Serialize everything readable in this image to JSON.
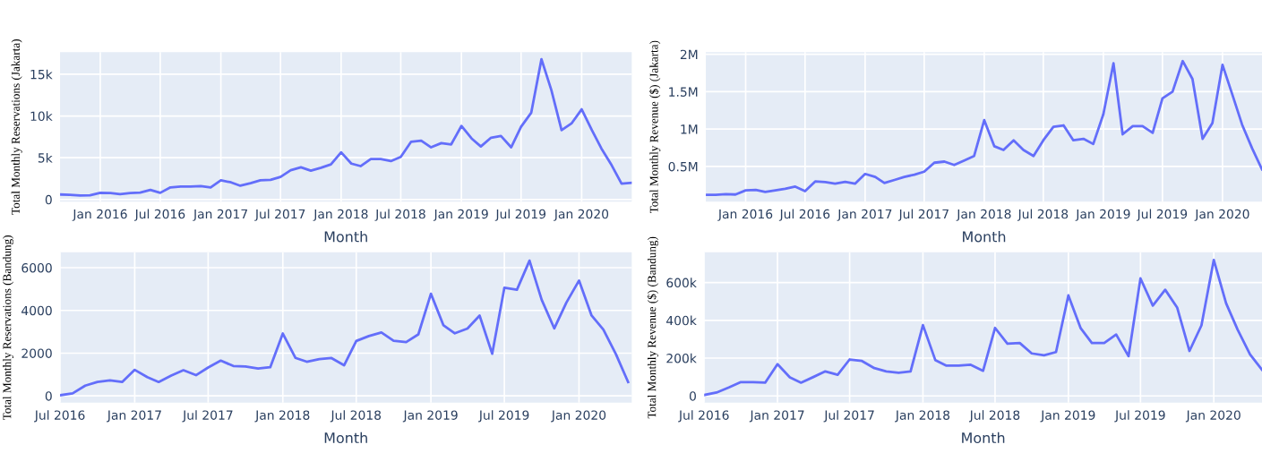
{
  "chart_data": [
    {
      "type": "line",
      "xlabel": "Month",
      "ylabel": "Total Monthly Reservations (Jakarta)",
      "grid": true,
      "x": [
        "2015-09",
        "2015-10",
        "2015-11",
        "2015-12",
        "2016-01",
        "2016-02",
        "2016-03",
        "2016-04",
        "2016-05",
        "2016-06",
        "2016-07",
        "2016-08",
        "2016-09",
        "2016-10",
        "2016-11",
        "2016-12",
        "2017-01",
        "2017-02",
        "2017-03",
        "2017-04",
        "2017-05",
        "2017-06",
        "2017-07",
        "2017-08",
        "2017-09",
        "2017-10",
        "2017-11",
        "2017-12",
        "2018-01",
        "2018-02",
        "2018-03",
        "2018-04",
        "2018-05",
        "2018-06",
        "2018-07",
        "2018-08",
        "2018-09",
        "2018-10",
        "2018-11",
        "2018-12",
        "2019-01",
        "2019-02",
        "2019-03",
        "2019-04",
        "2019-05",
        "2019-06",
        "2019-07",
        "2019-08",
        "2019-09",
        "2019-10",
        "2019-11",
        "2019-12",
        "2020-01",
        "2020-02",
        "2020-03",
        "2020-04",
        "2020-05",
        "2020-06"
      ],
      "series": [
        {
          "color": "#636efa",
          "values": [
            600,
            550,
            480,
            500,
            800,
            780,
            650,
            780,
            820,
            1150,
            800,
            1450,
            1550,
            1550,
            1600,
            1450,
            2300,
            2050,
            1650,
            1950,
            2300,
            2350,
            2700,
            3500,
            3850,
            3450,
            3800,
            4200,
            5650,
            4300,
            4000,
            4850,
            4850,
            4600,
            5100,
            6900,
            7050,
            6250,
            6750,
            6600,
            8800,
            7300,
            6350,
            7400,
            7600,
            6250,
            8700,
            10400,
            16800,
            13100,
            8300,
            9100,
            10800,
            8300,
            6100,
            4100,
            1900,
            2000
          ]
        }
      ],
      "xlim": [
        "2015-09-01",
        "2020-06-01"
      ],
      "xticks": [
        {
          "value": "2016-01",
          "label": "Jan 2016"
        },
        {
          "value": "2016-07",
          "label": "Jul 2016"
        },
        {
          "value": "2017-01",
          "label": "Jan 2017"
        },
        {
          "value": "2017-07",
          "label": "Jul 2017"
        },
        {
          "value": "2018-01",
          "label": "Jan 2018"
        },
        {
          "value": "2018-07",
          "label": "Jul 2018"
        },
        {
          "value": "2019-01",
          "label": "Jan 2019"
        },
        {
          "value": "2019-07",
          "label": "Jul 2019"
        },
        {
          "value": "2020-01",
          "label": "Jan 2020"
        }
      ],
      "ylim": [
        -250,
        17650
      ],
      "yticks": [
        0,
        {
          "value": 5000,
          "label": "5k"
        },
        {
          "value": 10000,
          "label": "10k"
        },
        {
          "value": 15000,
          "label": "15k"
        }
      ]
    },
    {
      "type": "line",
      "xlabel": "Month",
      "ylabel": "Total Monthly Revenue ($) (Jakarta)",
      "grid": true,
      "x": [
        "2015-09",
        "2015-10",
        "2015-11",
        "2015-12",
        "2016-01",
        "2016-02",
        "2016-03",
        "2016-04",
        "2016-05",
        "2016-06",
        "2016-07",
        "2016-08",
        "2016-09",
        "2016-10",
        "2016-11",
        "2016-12",
        "2017-01",
        "2017-02",
        "2017-03",
        "2017-04",
        "2017-05",
        "2017-06",
        "2017-07",
        "2017-08",
        "2017-09",
        "2017-10",
        "2017-11",
        "2017-12",
        "2018-01",
        "2018-02",
        "2018-03",
        "2018-04",
        "2018-05",
        "2018-06",
        "2018-07",
        "2018-08",
        "2018-09",
        "2018-10",
        "2018-11",
        "2018-12",
        "2019-01",
        "2019-02",
        "2019-03",
        "2019-04",
        "2019-05",
        "2019-06",
        "2019-07",
        "2019-08",
        "2019-09",
        "2019-10",
        "2019-11",
        "2019-12",
        "2020-01",
        "2020-02",
        "2020-03",
        "2020-04",
        "2020-05"
      ],
      "series": [
        {
          "color": "#636efa",
          "values": [
            120000,
            120000,
            130000,
            125000,
            180000,
            185000,
            160000,
            180000,
            200000,
            230000,
            170000,
            300000,
            290000,
            270000,
            295000,
            270000,
            400000,
            360000,
            280000,
            320000,
            360000,
            390000,
            430000,
            550000,
            565000,
            520000,
            580000,
            640000,
            1120000,
            770000,
            720000,
            850000,
            720000,
            640000,
            850000,
            1030000,
            1050000,
            850000,
            870000,
            800000,
            1200000,
            1880000,
            930000,
            1040000,
            1040000,
            950000,
            1410000,
            1500000,
            1910000,
            1670000,
            870000,
            1080000,
            1860000,
            1450000,
            1060000,
            740000,
            460000
          ]
        }
      ],
      "xlim": [
        "2015-09-01",
        "2020-05-01"
      ],
      "xticks": [
        {
          "value": "2016-01",
          "label": "Jan 2016"
        },
        {
          "value": "2016-07",
          "label": "Jul 2016"
        },
        {
          "value": "2017-01",
          "label": "Jan 2017"
        },
        {
          "value": "2017-07",
          "label": "Jul 2017"
        },
        {
          "value": "2018-01",
          "label": "Jan 2018"
        },
        {
          "value": "2018-07",
          "label": "Jul 2018"
        },
        {
          "value": "2019-01",
          "label": "Jan 2019"
        },
        {
          "value": "2019-07",
          "label": "Jul 2019"
        },
        {
          "value": "2020-01",
          "label": "Jan 2020"
        }
      ],
      "ylim": [
        30000,
        2030000
      ],
      "yticks": [
        {
          "value": 500000,
          "label": "0.5M"
        },
        {
          "value": 1000000,
          "label": "1M"
        },
        {
          "value": 1500000,
          "label": "1.5M"
        },
        {
          "value": 2000000,
          "label": "2M"
        }
      ]
    },
    {
      "type": "line",
      "xlabel": "Month",
      "ylabel": "Total Monthly Reservations (Bandung)",
      "grid": true,
      "x": [
        "2016-07",
        "2016-08",
        "2016-09",
        "2016-10",
        "2016-11",
        "2016-12",
        "2017-01",
        "2017-02",
        "2017-03",
        "2017-04",
        "2017-05",
        "2017-06",
        "2017-07",
        "2017-08",
        "2017-09",
        "2017-10",
        "2017-11",
        "2017-12",
        "2018-01",
        "2018-02",
        "2018-03",
        "2018-04",
        "2018-05",
        "2018-06",
        "2018-07",
        "2018-08",
        "2018-09",
        "2018-10",
        "2018-11",
        "2018-12",
        "2019-01",
        "2019-02",
        "2019-03",
        "2019-04",
        "2019-05",
        "2019-06",
        "2019-07",
        "2019-08",
        "2019-09",
        "2019-10",
        "2019-11",
        "2019-12",
        "2020-01",
        "2020-02",
        "2020-03",
        "2020-04",
        "2020-05"
      ],
      "series": [
        {
          "color": "#636efa",
          "values": [
            30,
            120,
            480,
            650,
            730,
            650,
            1220,
            880,
            650,
            950,
            1200,
            970,
            1330,
            1650,
            1400,
            1380,
            1280,
            1340,
            2920,
            1780,
            1600,
            1720,
            1770,
            1430,
            2570,
            2800,
            2970,
            2580,
            2520,
            2880,
            4780,
            3300,
            2930,
            3150,
            3760,
            1970,
            5060,
            4970,
            6330,
            4500,
            3160,
            4370,
            5400,
            3760,
            3100,
            1950,
            650
          ]
        }
      ],
      "xlim": [
        "2016-07-01",
        "2020-05-10"
      ],
      "xticks": [
        {
          "value": "2016-07",
          "label": "Jul 2016"
        },
        {
          "value": "2017-01",
          "label": "Jan 2017"
        },
        {
          "value": "2017-07",
          "label": "Jul 2017"
        },
        {
          "value": "2018-01",
          "label": "Jan 2018"
        },
        {
          "value": "2018-07",
          "label": "Jul 2018"
        },
        {
          "value": "2019-01",
          "label": "Jan 2019"
        },
        {
          "value": "2019-07",
          "label": "Jul 2019"
        },
        {
          "value": "2020-01",
          "label": "Jan 2020"
        }
      ],
      "ylim": [
        -320,
        6720
      ],
      "yticks": [
        0,
        2000,
        4000,
        6000
      ]
    },
    {
      "type": "line",
      "xlabel": "Month",
      "ylabel": "Total Monthly Revenue ($) (Bandung)",
      "grid": true,
      "x": [
        "2016-07",
        "2016-08",
        "2016-09",
        "2016-10",
        "2016-11",
        "2016-12",
        "2017-01",
        "2017-02",
        "2017-03",
        "2017-04",
        "2017-05",
        "2017-06",
        "2017-07",
        "2017-08",
        "2017-09",
        "2017-10",
        "2017-11",
        "2017-12",
        "2018-01",
        "2018-02",
        "2018-03",
        "2018-04",
        "2018-05",
        "2018-06",
        "2018-07",
        "2018-08",
        "2018-09",
        "2018-10",
        "2018-11",
        "2018-12",
        "2019-01",
        "2019-02",
        "2019-03",
        "2019-04",
        "2019-05",
        "2019-06",
        "2019-07",
        "2019-08",
        "2019-09",
        "2019-10",
        "2019-11",
        "2019-12",
        "2020-01",
        "2020-02",
        "2020-03",
        "2020-04",
        "2020-05"
      ],
      "series": [
        {
          "color": "#636efa",
          "values": [
            5000,
            18000,
            45000,
            73000,
            73000,
            70000,
            168000,
            98000,
            70000,
            100000,
            130000,
            112000,
            193000,
            185000,
            147000,
            130000,
            122000,
            130000,
            375000,
            190000,
            160000,
            160000,
            165000,
            133000,
            360000,
            277000,
            280000,
            225000,
            215000,
            232000,
            532000,
            358000,
            280000,
            280000,
            325000,
            210000,
            622000,
            478000,
            562000,
            468000,
            238000,
            373000,
            720000,
            490000,
            350000,
            220000,
            138000
          ]
        }
      ],
      "xlim": [
        "2016-07-01",
        "2020-05-01"
      ],
      "xticks": [
        {
          "value": "2016-07",
          "label": "Jul 2016"
        },
        {
          "value": "2017-01",
          "label": "Jan 2017"
        },
        {
          "value": "2017-07",
          "label": "Jul 2017"
        },
        {
          "value": "2018-01",
          "label": "Jan 2018"
        },
        {
          "value": "2018-07",
          "label": "Jul 2018"
        },
        {
          "value": "2019-01",
          "label": "Jan 2019"
        },
        {
          "value": "2019-07",
          "label": "Jul 2019"
        },
        {
          "value": "2020-01",
          "label": "Jan 2020"
        }
      ],
      "ylim": [
        -36000,
        760000
      ],
      "yticks": [
        0,
        {
          "value": 200000,
          "label": "200k"
        },
        {
          "value": 400000,
          "label": "400k"
        },
        {
          "value": 600000,
          "label": "600k"
        }
      ]
    }
  ]
}
